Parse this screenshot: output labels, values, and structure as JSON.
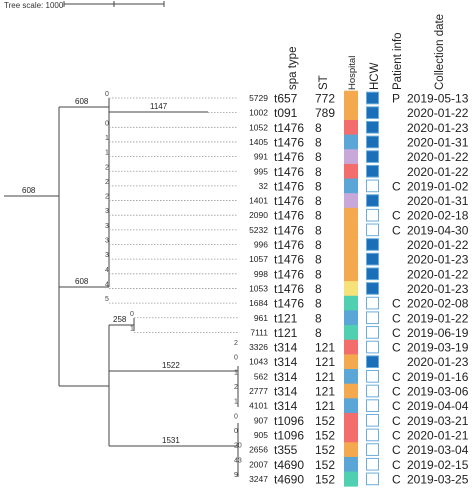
{
  "tree_scale": {
    "label": "Tree scale: 1000"
  },
  "headers": {
    "spa_type": "spa type",
    "st": "ST",
    "hospital": "Hospital",
    "hcw": "HCW",
    "patient_info": "Patient info",
    "collection_date": "Collection date"
  },
  "branch_labels": {
    "root": "608",
    "top_clade": "608",
    "t091_branch": "1147",
    "t1476_clade": "608",
    "t121_clade": "258",
    "t314_clade": "1522",
    "t1096_clade": "1531"
  },
  "colors": {
    "orange": "#f5a94e",
    "red": "#f46d6d",
    "blue": "#5aa6d6",
    "lilac": "#c8a8d9",
    "yellow": "#f5e27a",
    "teal": "#4fd0b0",
    "hcw_blue": "#1a6fb8",
    "hcw_border": "#6aaedc"
  },
  "rows": [
    {
      "id": "5729",
      "node": "0",
      "spa": "t657",
      "st": "772",
      "hospital": "orange",
      "hcw": true,
      "patient": "P",
      "date": "2019-05-13"
    },
    {
      "id": "1002",
      "node": "",
      "spa": "t091",
      "st": "789",
      "hospital": "orange",
      "hcw": true,
      "patient": "",
      "date": "2020-01-22"
    },
    {
      "id": "1052",
      "node": "0",
      "spa": "t1476",
      "st": "8",
      "hospital": "red",
      "hcw": true,
      "patient": "",
      "date": "2020-01-23"
    },
    {
      "id": "1405",
      "node": "1",
      "spa": "t1476",
      "st": "8",
      "hospital": "blue",
      "hcw": true,
      "patient": "",
      "date": "2020-01-31"
    },
    {
      "id": "991",
      "node": "1",
      "spa": "t1476",
      "st": "8",
      "hospital": "lilac",
      "hcw": true,
      "patient": "",
      "date": "2020-01-22"
    },
    {
      "id": "995",
      "node": "2",
      "spa": "t1476",
      "st": "8",
      "hospital": "red",
      "hcw": true,
      "patient": "",
      "date": "2020-01-22"
    },
    {
      "id": "32",
      "node": "2",
      "spa": "t1476",
      "st": "8",
      "hospital": "blue",
      "hcw": false,
      "patient": "C",
      "date": "2019-01-02"
    },
    {
      "id": "1401",
      "node": "2",
      "spa": "t1476",
      "st": "8",
      "hospital": "lilac",
      "hcw": true,
      "patient": "",
      "date": "2020-01-31"
    },
    {
      "id": "2090",
      "node": "3",
      "spa": "t1476",
      "st": "8",
      "hospital": "orange",
      "hcw": false,
      "patient": "C",
      "date": "2020-02-18"
    },
    {
      "id": "5232",
      "node": "3",
      "spa": "t1476",
      "st": "8",
      "hospital": "orange",
      "hcw": false,
      "patient": "C",
      "date": "2019-04-30"
    },
    {
      "id": "996",
      "node": "3",
      "spa": "t1476",
      "st": "8",
      "hospital": "orange",
      "hcw": true,
      "patient": "",
      "date": "2020-01-22"
    },
    {
      "id": "1057",
      "node": "3",
      "spa": "t1476",
      "st": "8",
      "hospital": "orange",
      "hcw": true,
      "patient": "",
      "date": "2020-01-23"
    },
    {
      "id": "998",
      "node": "4",
      "spa": "t1476",
      "st": "8",
      "hospital": "orange",
      "hcw": true,
      "patient": "",
      "date": "2020-01-22"
    },
    {
      "id": "1053",
      "node": "4",
      "spa": "t1476",
      "st": "8",
      "hospital": "yellow",
      "hcw": true,
      "patient": "",
      "date": "2020-01-23"
    },
    {
      "id": "1684",
      "node": "5",
      "spa": "t1476",
      "st": "8",
      "hospital": "teal",
      "hcw": false,
      "patient": "C",
      "date": "2020-02-08"
    },
    {
      "id": "961",
      "node": "0",
      "spa": "t121",
      "st": "8",
      "hospital": "blue",
      "hcw": false,
      "patient": "C",
      "date": "2019-01-22"
    },
    {
      "id": "7111",
      "node": "1",
      "spa": "t121",
      "st": "8",
      "hospital": "teal",
      "hcw": false,
      "patient": "C",
      "date": "2019-06-19"
    },
    {
      "id": "3326",
      "node": "2",
      "spa": "t314",
      "st": "121",
      "hospital": "red",
      "hcw": false,
      "patient": "C",
      "date": "2019-03-19"
    },
    {
      "id": "1043",
      "node": "0",
      "spa": "t314",
      "st": "121",
      "hospital": "orange",
      "hcw": true,
      "patient": "",
      "date": "2020-01-23"
    },
    {
      "id": "562",
      "node": "1",
      "spa": "t314",
      "st": "121",
      "hospital": "blue",
      "hcw": false,
      "patient": "C",
      "date": "2019-01-16"
    },
    {
      "id": "2777",
      "node": "2",
      "spa": "t314",
      "st": "121",
      "hospital": "orange",
      "hcw": false,
      "patient": "C",
      "date": "2019-03-06"
    },
    {
      "id": "4101",
      "node": "1",
      "spa": "t314",
      "st": "121",
      "hospital": "blue",
      "hcw": false,
      "patient": "C",
      "date": "2019-04-04"
    },
    {
      "id": "907",
      "node": "0",
      "spa": "t1096",
      "st": "152",
      "hospital": "red",
      "hcw": false,
      "patient": "C",
      "date": "2019-03-21"
    },
    {
      "id": "905",
      "node": "0",
      "spa": "t1096",
      "st": "152",
      "hospital": "red",
      "hcw": false,
      "patient": "C",
      "date": "2020-01-21"
    },
    {
      "id": "2656",
      "node": "20",
      "spa": "t355",
      "st": "152",
      "hospital": "orange",
      "hcw": false,
      "patient": "C",
      "date": "2019-03-04"
    },
    {
      "id": "2007",
      "node": "43",
      "spa": "t4690",
      "st": "152",
      "hospital": "blue",
      "hcw": false,
      "patient": "C",
      "date": "2019-02-15"
    },
    {
      "id": "3247",
      "node": "9",
      "spa": "t4690",
      "st": "152",
      "hospital": "teal",
      "hcw": false,
      "patient": "C",
      "date": "2019-03-25"
    }
  ]
}
